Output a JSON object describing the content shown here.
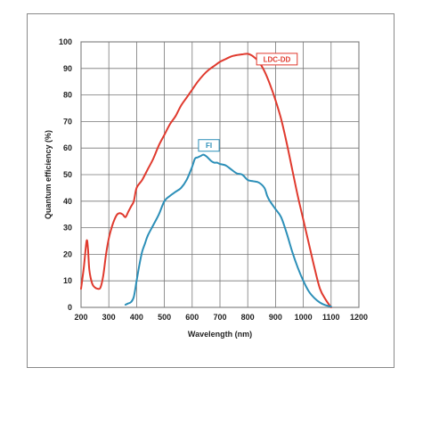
{
  "chart_data": {
    "type": "line",
    "xlabel": "Wavelength (nm)",
    "ylabel": "Quantum efficiency (%)",
    "xlim": [
      200,
      1200
    ],
    "ylim": [
      0,
      100
    ],
    "xticks": [
      200,
      300,
      400,
      500,
      600,
      700,
      800,
      900,
      1000,
      1100,
      1200
    ],
    "yticks": [
      0,
      10,
      20,
      30,
      40,
      50,
      60,
      70,
      80,
      90,
      100
    ],
    "grid": true,
    "series": [
      {
        "name": "LDC-DD",
        "color": "#e03a2e",
        "label_box_color": "#e03a2e",
        "x": [
          200,
          210,
          220,
          225,
          230,
          240,
          250,
          260,
          270,
          280,
          290,
          300,
          310,
          320,
          330,
          340,
          350,
          360,
          370,
          380,
          390,
          400,
          420,
          440,
          460,
          480,
          500,
          520,
          540,
          560,
          580,
          600,
          620,
          640,
          660,
          680,
          700,
          720,
          740,
          760,
          780,
          800,
          820,
          840,
          860,
          880,
          900,
          920,
          940,
          960,
          980,
          1000,
          1020,
          1040,
          1060,
          1080,
          1100
        ],
        "y": [
          7,
          15,
          25,
          22,
          14,
          9,
          7.5,
          7,
          7.5,
          12,
          20,
          26,
          30,
          33,
          35,
          35.5,
          35,
          34,
          36,
          38,
          40,
          45,
          48,
          52,
          56,
          61,
          65,
          69,
          72,
          76,
          79,
          82,
          85,
          87.5,
          89.5,
          91,
          92.5,
          93.5,
          94.5,
          95,
          95.3,
          95.5,
          94.5,
          92.5,
          89,
          84,
          78,
          71,
          62,
          52,
          42,
          33,
          24,
          15,
          7,
          3,
          0
        ]
      },
      {
        "name": "FI",
        "color": "#2c8fb8",
        "label_box_color": "#2c8fb8",
        "x": [
          360,
          370,
          380,
          390,
          400,
          410,
          420,
          430,
          440,
          460,
          480,
          500,
          520,
          540,
          560,
          580,
          600,
          610,
          620,
          630,
          640,
          650,
          660,
          670,
          680,
          690,
          700,
          720,
          740,
          760,
          780,
          800,
          820,
          840,
          860,
          870,
          880,
          900,
          920,
          940,
          960,
          980,
          1000,
          1020,
          1040,
          1060,
          1080,
          1100
        ],
        "y": [
          1,
          1.5,
          2,
          4,
          10,
          16,
          21,
          24,
          27,
          31,
          35,
          40,
          42,
          43.5,
          45,
          48,
          53,
          56,
          56.5,
          57,
          57.5,
          57,
          56,
          55,
          54.5,
          54.5,
          54,
          53.5,
          52,
          50.5,
          50,
          48,
          47.5,
          47,
          45,
          42,
          40,
          37,
          34,
          28,
          21,
          15,
          10,
          6,
          3.5,
          1.8,
          0.8,
          0.3
        ]
      }
    ]
  }
}
